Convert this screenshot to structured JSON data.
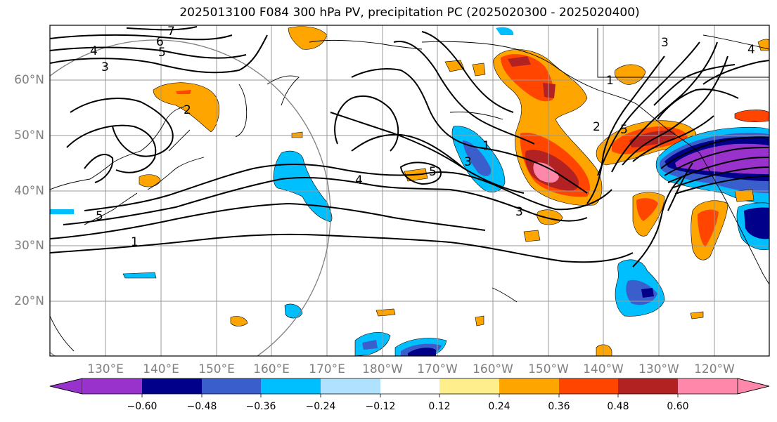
{
  "title": "2025013100 F084 300 hPa PV, precipitation PC (2025020300 - 2025020400)",
  "map": {
    "lat_labels": [
      "60°N",
      "50°N",
      "40°N",
      "30°N",
      "20°N"
    ],
    "lon_labels": [
      "130°E",
      "140°E",
      "150°E",
      "160°E",
      "170°E",
      "180°W",
      "170°W",
      "160°W",
      "150°W",
      "140°W",
      "130°W",
      "120°W"
    ],
    "contour_labels": [
      "7",
      "6",
      "5",
      "4",
      "3",
      "2",
      "5",
      "1",
      "5",
      "1",
      "3",
      "4",
      "3",
      "1",
      "2",
      "5",
      "3",
      "4"
    ],
    "colors": {
      "c_m060": "#9932CC",
      "c_m048": "#00008B",
      "c_m036": "#3A5FCD",
      "c_m024": "#00BFFF",
      "c_m012": "#B0E2FF",
      "c_p012": "#FFEE8C",
      "c_p024": "#FFA500",
      "c_p036": "#FF4500",
      "c_p048": "#B22222",
      "c_p060": "#FF88AA"
    }
  },
  "colorbar": {
    "ticks": [
      "−0.60",
      "−0.48",
      "−0.36",
      "−0.24",
      "−0.12",
      "0.12",
      "0.24",
      "0.36",
      "0.48",
      "0.60"
    ],
    "colors": [
      "#9932CC",
      "#00008B",
      "#3A5FCD",
      "#00BFFF",
      "#B0E2FF",
      "#FFFFFF",
      "#FFEE8C",
      "#FFA500",
      "#FF4500",
      "#B22222",
      "#FF88AA"
    ]
  }
}
